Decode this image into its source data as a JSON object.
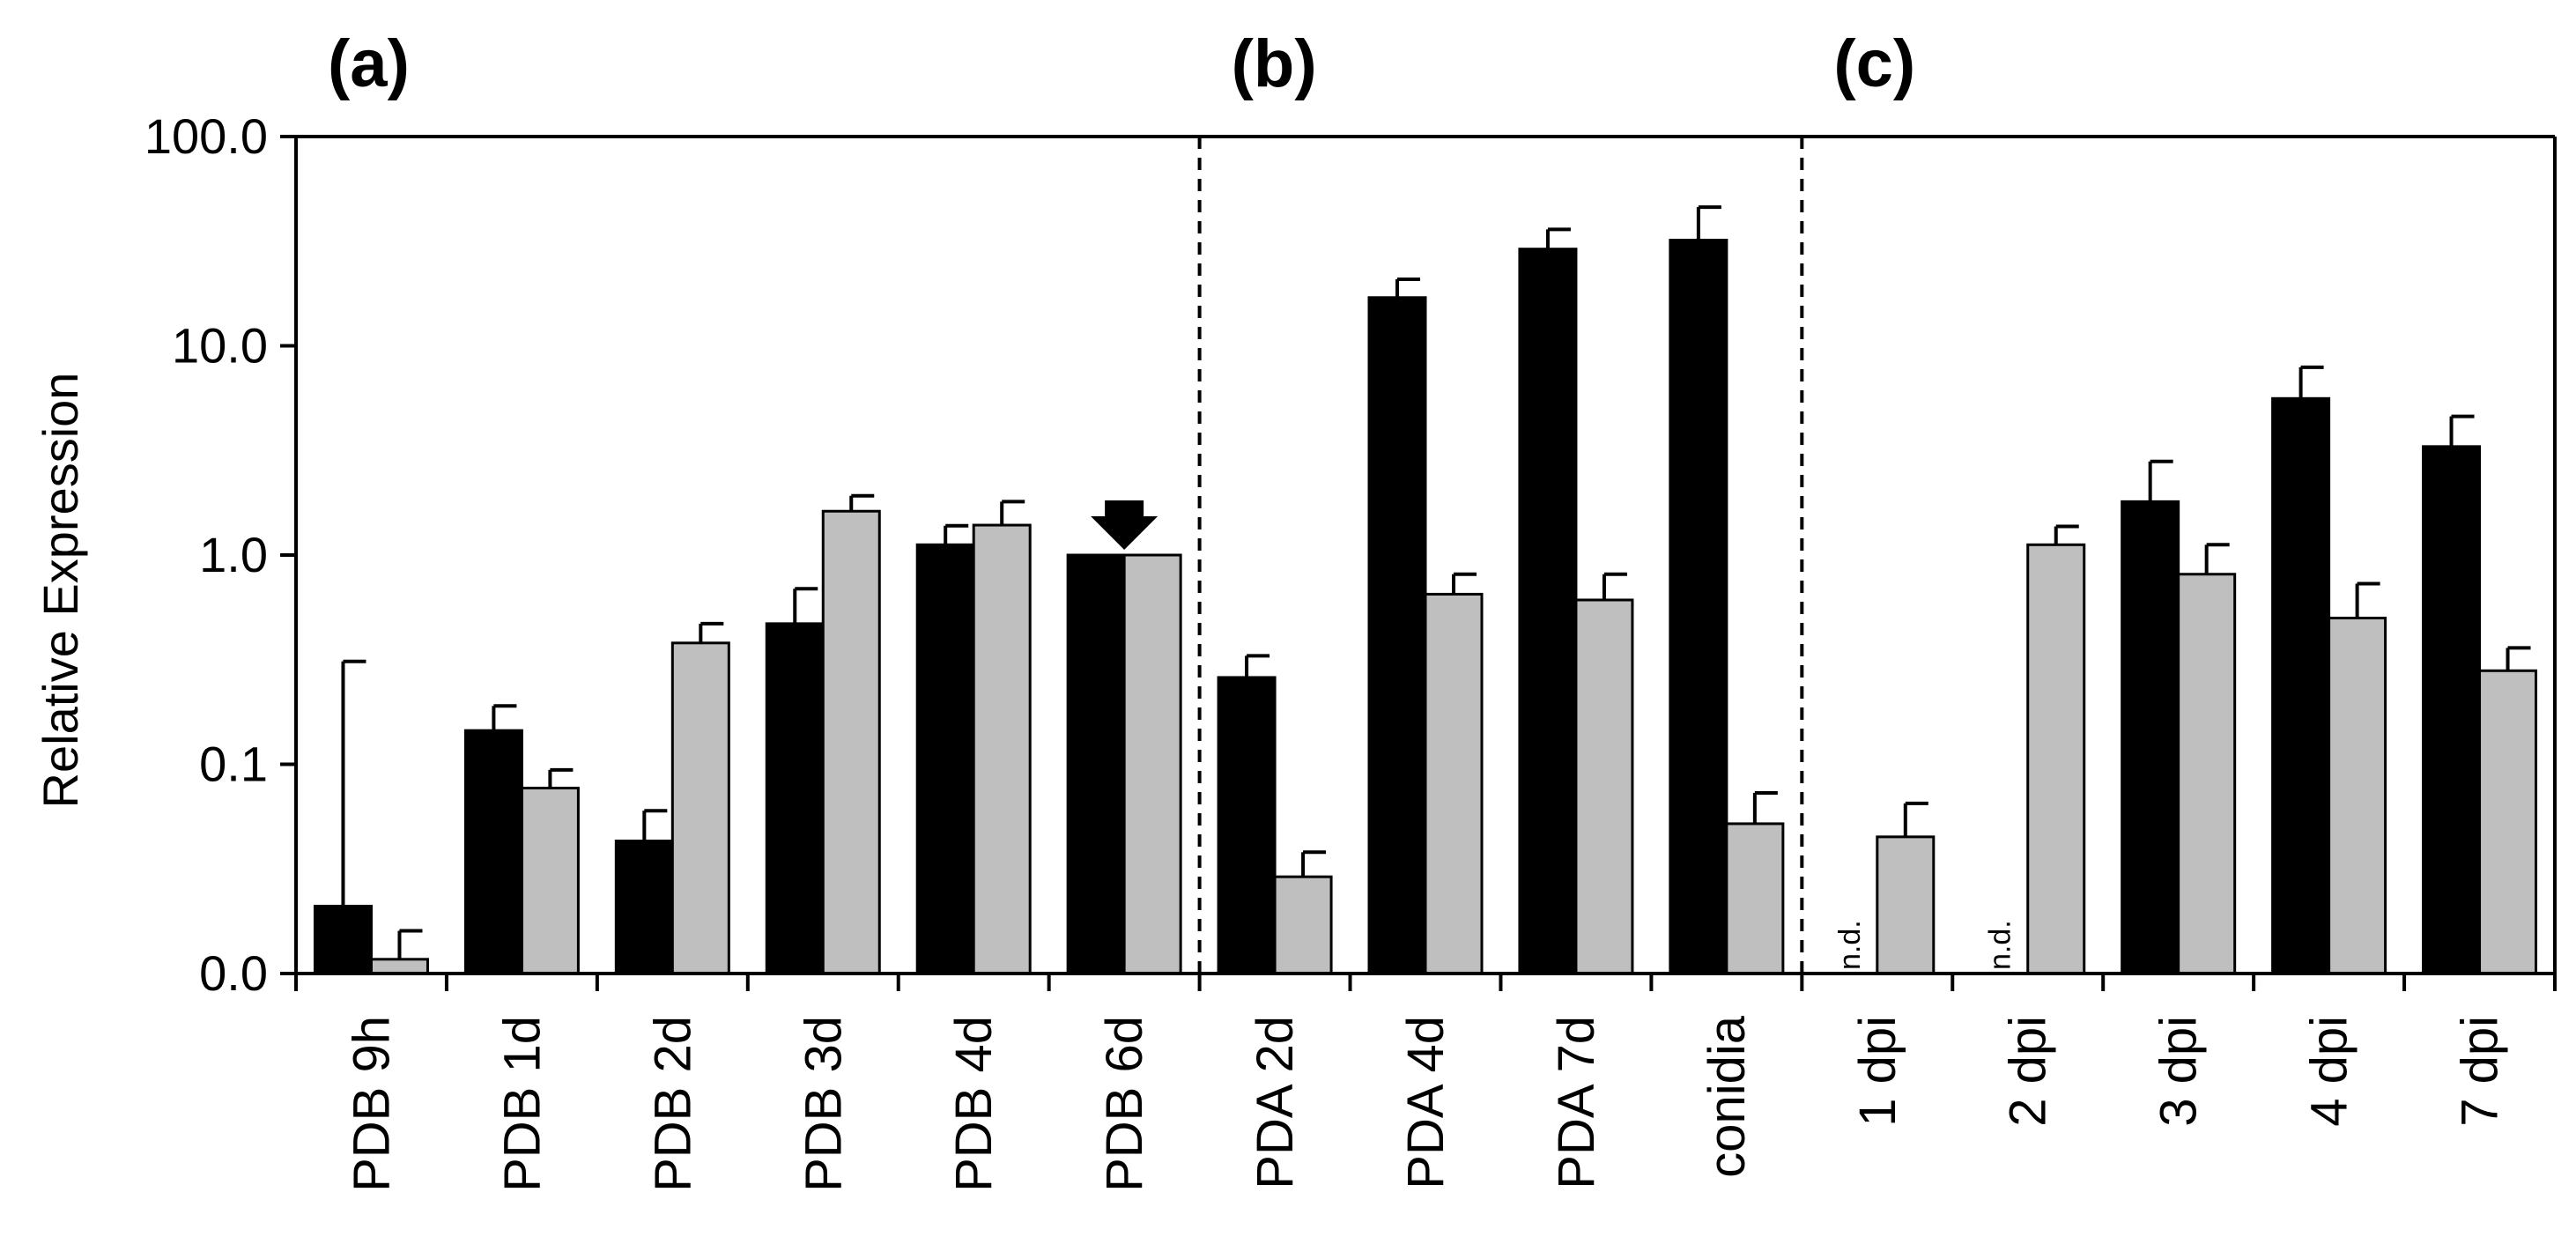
{
  "colors": {
    "series_a": "#000000",
    "series_b": "#bfbfbf",
    "axis": "#000000",
    "background": "#ffffff"
  },
  "chart_data": {
    "type": "bar",
    "scale": "log",
    "ylabel": "Relative Expression",
    "ylim": [
      0.01,
      100
    ],
    "ytick_values": [
      0.01,
      0.1,
      1,
      10,
      100
    ],
    "ytick_labels": [
      "0.0",
      "0.1",
      "1.0",
      "10.0",
      "100.0"
    ],
    "panels": [
      {
        "label": "(a)",
        "categories": [
          "PDB 9h",
          "PDB 1d",
          "PDB 2d",
          "PDB 3d",
          "PDB 4d",
          "PDB 6d"
        ]
      },
      {
        "label": "(b)",
        "categories": [
          "PDA 2d",
          "PDA 4d",
          "PDA 7d",
          "conidia"
        ]
      },
      {
        "label": "(c)",
        "categories": [
          "1 dpi",
          "2 dpi",
          "3 dpi",
          "4 dpi",
          "7 dpi"
        ]
      }
    ],
    "categories": [
      "PDB 9h",
      "PDB 1d",
      "PDB 2d",
      "PDB 3d",
      "PDB 4d",
      "PDB 6d",
      "PDA 2d",
      "PDA 4d",
      "PDA 7d",
      "conidia",
      "1 dpi",
      "2 dpi",
      "3 dpi",
      "4 dpi",
      "7 dpi"
    ],
    "series": [
      {
        "name": "black",
        "values": [
          0.021,
          0.145,
          0.043,
          0.47,
          1.12,
          1.0,
          0.26,
          17.0,
          29.0,
          32.0,
          null,
          null,
          1.8,
          5.6,
          3.3
        ],
        "errors": [
          0.31,
          0.19,
          0.06,
          0.69,
          1.38,
          null,
          0.33,
          20.8,
          36.0,
          46.0,
          null,
          null,
          2.8,
          7.9,
          4.6
        ]
      },
      {
        "name": "gray",
        "values": [
          0.0117,
          0.077,
          0.38,
          1.62,
          1.39,
          1.0,
          0.029,
          0.65,
          0.61,
          0.052,
          0.045,
          1.12,
          0.81,
          0.5,
          0.28
        ],
        "errors": [
          0.016,
          0.094,
          0.47,
          1.92,
          1.8,
          null,
          0.038,
          0.81,
          0.81,
          0.073,
          0.065,
          1.37,
          1.12,
          0.73,
          0.36
        ]
      }
    ],
    "not_detected_label": "n.d.",
    "not_detected_categories": [
      "1 dpi",
      "2 dpi"
    ],
    "reference_marker": "arrow",
    "reference_category": "PDB 6d"
  }
}
